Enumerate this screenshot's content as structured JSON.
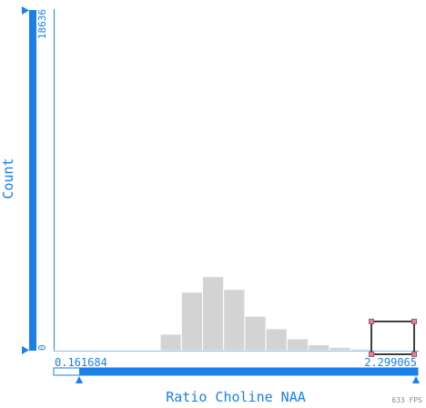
{
  "colors": {
    "accent": "#1a7fe6",
    "bar_fill": "#d3d3d3",
    "bar_stroke": "#ffffff",
    "handle_fill": "#d98a9a",
    "handle_stroke": "#b0506a",
    "selection_box": "#000000",
    "fps_text": "#888888"
  },
  "y_axis": {
    "label": "Count",
    "max_label": "18636",
    "min_label": "0"
  },
  "x_axis": {
    "label": "Ratio Choline NAA",
    "min_label": "0.161684",
    "max_label": "2.299065"
  },
  "fps": "633 FPS",
  "chart_data": {
    "type": "bar",
    "title": "",
    "xlabel": "Ratio Choline NAA",
    "ylabel": "Count",
    "xlim": [
      0.161684,
      2.299065
    ],
    "ylim": [
      0,
      18636
    ],
    "grid": false,
    "bin_edges": [
      0.161684,
      0.286352,
      0.41102,
      0.535688,
      0.660356,
      0.785024,
      0.909692,
      1.03436,
      1.159028,
      1.283696,
      1.408364,
      1.533032,
      1.6577,
      1.782368,
      1.907036,
      2.031704,
      2.156372,
      2.299065
    ],
    "values": [
      20,
      20,
      20,
      20,
      40,
      900,
      3200,
      4050,
      3350,
      1880,
      1200,
      650,
      320,
      180,
      90,
      40,
      20
    ]
  }
}
